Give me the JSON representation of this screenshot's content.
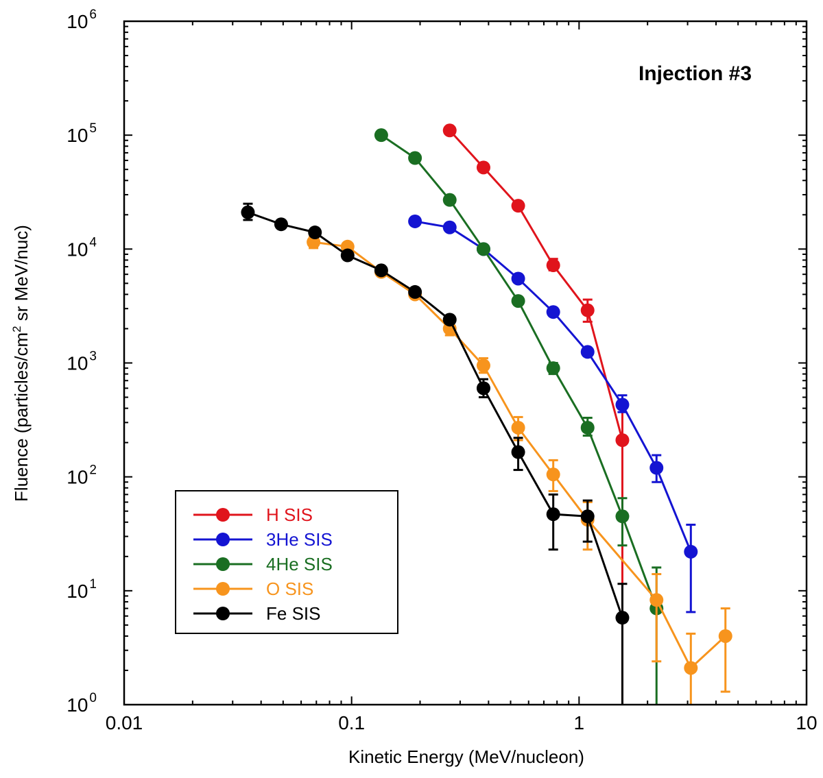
{
  "chart_data": {
    "type": "scatter",
    "title": "",
    "annotation": "Injection #3",
    "xlabel": "Kinetic Energy (MeV/nucleon)",
    "ylabel_parts": [
      "Fluence (particles/cm",
      "2",
      " sr MeV/nuc)"
    ],
    "xscale": "log",
    "yscale": "log",
    "xlim": [
      0.01,
      10
    ],
    "ylim": [
      1,
      1000000
    ],
    "x_ticks": [
      {
        "value": 0.01,
        "label": "0.01"
      },
      {
        "value": 0.1,
        "label": "0.1"
      },
      {
        "value": 1,
        "label": "1"
      },
      {
        "value": 10,
        "label": "10"
      }
    ],
    "y_ticks": [
      {
        "value": 1,
        "base": "10",
        "exp": "0"
      },
      {
        "value": 10,
        "base": "10",
        "exp": "1"
      },
      {
        "value": 100,
        "base": "10",
        "exp": "2"
      },
      {
        "value": 1000,
        "base": "10",
        "exp": "3"
      },
      {
        "value": 10000,
        "base": "10",
        "exp": "4"
      },
      {
        "value": 100000,
        "base": "10",
        "exp": "5"
      },
      {
        "value": 1000000,
        "base": "10",
        "exp": "6"
      }
    ],
    "grid": false,
    "legend_position": "bottom-left",
    "series": [
      {
        "name": "H SIS",
        "color": "#e0141c",
        "points": [
          {
            "x": 0.27,
            "y": 110000,
            "lo": null,
            "hi": null
          },
          {
            "x": 0.38,
            "y": 52000,
            "lo": null,
            "hi": null
          },
          {
            "x": 0.54,
            "y": 24000,
            "lo": null,
            "hi": null
          },
          {
            "x": 0.77,
            "y": 7200,
            "lo": 6500,
            "hi": 8200
          },
          {
            "x": 1.09,
            "y": 2900,
            "lo": 2300,
            "hi": 3600
          },
          {
            "x": 1.55,
            "y": 210,
            "lo": 1,
            "hi": 400
          }
        ]
      },
      {
        "name": "3He SIS",
        "color": "#1414d2",
        "points": [
          {
            "x": 0.19,
            "y": 17500,
            "lo": null,
            "hi": null
          },
          {
            "x": 0.27,
            "y": 15500,
            "lo": null,
            "hi": null
          },
          {
            "x": 0.38,
            "y": 10000,
            "lo": null,
            "hi": null
          },
          {
            "x": 0.54,
            "y": 5500,
            "lo": null,
            "hi": null
          },
          {
            "x": 0.77,
            "y": 2800,
            "lo": null,
            "hi": null
          },
          {
            "x": 1.09,
            "y": 1250,
            "lo": null,
            "hi": null
          },
          {
            "x": 1.55,
            "y": 430,
            "lo": 370,
            "hi": 520
          },
          {
            "x": 2.19,
            "y": 120,
            "lo": 90,
            "hi": 155
          },
          {
            "x": 3.1,
            "y": 22,
            "lo": 6.5,
            "hi": 38
          }
        ]
      },
      {
        "name": "4He SIS",
        "color": "#1a6e22",
        "points": [
          {
            "x": 0.135,
            "y": 100000,
            "lo": null,
            "hi": null
          },
          {
            "x": 0.19,
            "y": 63000,
            "lo": null,
            "hi": null
          },
          {
            "x": 0.27,
            "y": 27000,
            "lo": null,
            "hi": null
          },
          {
            "x": 0.38,
            "y": 10000,
            "lo": null,
            "hi": null
          },
          {
            "x": 0.54,
            "y": 3500,
            "lo": null,
            "hi": null
          },
          {
            "x": 0.77,
            "y": 900,
            "lo": 800,
            "hi": 1000
          },
          {
            "x": 1.09,
            "y": 270,
            "lo": 230,
            "hi": 330
          },
          {
            "x": 1.55,
            "y": 45,
            "lo": 25,
            "hi": 65
          },
          {
            "x": 2.19,
            "y": 7,
            "lo": 1,
            "hi": 16
          }
        ]
      },
      {
        "name": "O SIS",
        "color": "#f7941d",
        "points": [
          {
            "x": 0.068,
            "y": 11500,
            "lo": 10200,
            "hi": 12800
          },
          {
            "x": 0.096,
            "y": 10500,
            "lo": null,
            "hi": null
          },
          {
            "x": 0.135,
            "y": 6300,
            "lo": null,
            "hi": null
          },
          {
            "x": 0.19,
            "y": 4000,
            "lo": null,
            "hi": null
          },
          {
            "x": 0.27,
            "y": 2000,
            "lo": 1750,
            "hi": 2300
          },
          {
            "x": 0.38,
            "y": 950,
            "lo": 820,
            "hi": 1100
          },
          {
            "x": 0.54,
            "y": 270,
            "lo": 210,
            "hi": 335
          },
          {
            "x": 0.77,
            "y": 105,
            "lo": 75,
            "hi": 140
          },
          {
            "x": 1.09,
            "y": 42,
            "lo": 23,
            "hi": 60
          },
          {
            "x": 2.19,
            "y": 8.3,
            "lo": 2.4,
            "hi": 14
          },
          {
            "x": 3.1,
            "y": 2.1,
            "lo": 1,
            "hi": 4.2
          },
          {
            "x": 4.4,
            "y": 4.0,
            "lo": 1.3,
            "hi": 7.0
          }
        ]
      },
      {
        "name": "Fe SIS",
        "color": "#000000",
        "points": [
          {
            "x": 0.035,
            "y": 21000,
            "lo": 18000,
            "hi": 25000
          },
          {
            "x": 0.049,
            "y": 16500,
            "lo": null,
            "hi": null
          },
          {
            "x": 0.069,
            "y": 14000,
            "lo": null,
            "hi": null
          },
          {
            "x": 0.096,
            "y": 8800,
            "lo": null,
            "hi": null
          },
          {
            "x": 0.135,
            "y": 6500,
            "lo": null,
            "hi": null
          },
          {
            "x": 0.19,
            "y": 4200,
            "lo": null,
            "hi": null
          },
          {
            "x": 0.27,
            "y": 2400,
            "lo": null,
            "hi": null
          },
          {
            "x": 0.38,
            "y": 600,
            "lo": 500,
            "hi": 720
          },
          {
            "x": 0.54,
            "y": 165,
            "lo": 115,
            "hi": 220
          },
          {
            "x": 0.77,
            "y": 47,
            "lo": 23,
            "hi": 70
          },
          {
            "x": 1.09,
            "y": 45,
            "lo": 27,
            "hi": 62
          },
          {
            "x": 1.55,
            "y": 5.8,
            "lo": 1,
            "hi": 11.5
          }
        ]
      }
    ]
  }
}
